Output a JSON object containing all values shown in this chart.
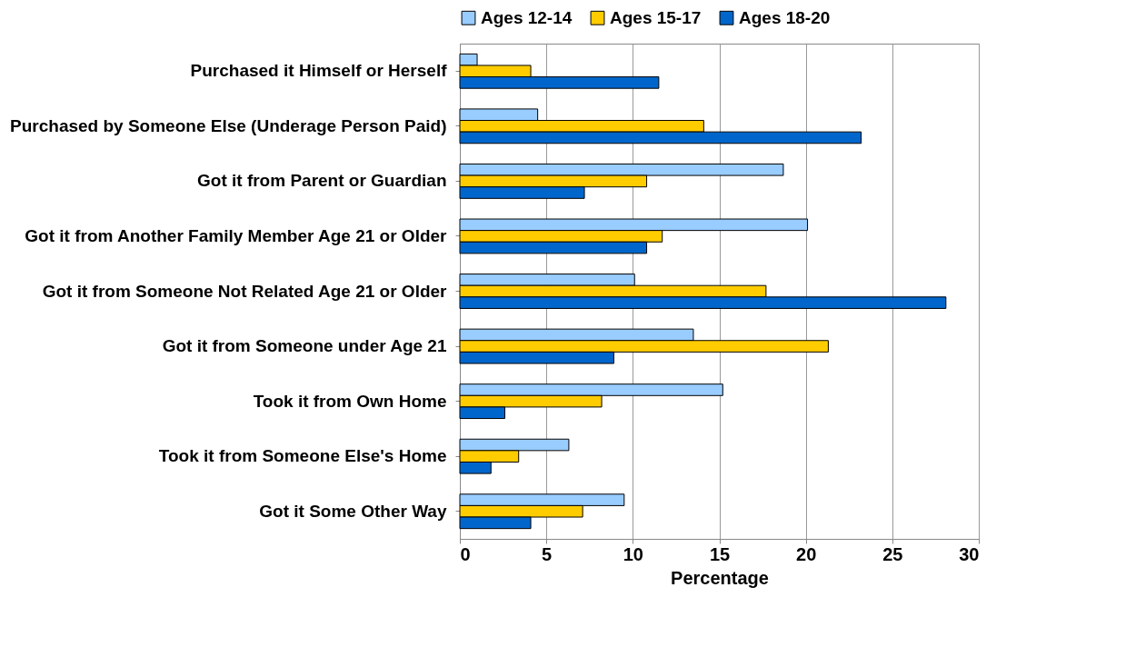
{
  "chart_data": {
    "type": "bar",
    "orientation": "horizontal",
    "xlabel": "Percentage",
    "categories": [
      "Purchased it Himself or Herself",
      "Purchased by Someone Else (Underage Person Paid)",
      "Got it from Parent or Guardian",
      "Got it from Another Family Member Age 21 or Older",
      "Got it from Someone Not Related Age 21 or Older",
      "Got it from Someone under Age 21",
      "Took it from Own Home",
      "Took it from Someone Else's Home",
      "Got it Some Other Way"
    ],
    "series": [
      {
        "name": "Ages 12-14",
        "color": "#99ccff",
        "values": [
          1.0,
          4.5,
          18.7,
          20.1,
          10.1,
          13.5,
          15.2,
          6.3,
          9.5
        ]
      },
      {
        "name": "Ages 15-17",
        "color": "#ffcc00",
        "values": [
          4.1,
          14.1,
          10.8,
          11.7,
          17.7,
          21.3,
          8.2,
          3.4,
          7.1
        ]
      },
      {
        "name": "Ages 18-20",
        "color": "#0066cc",
        "values": [
          11.5,
          23.2,
          7.2,
          10.8,
          28.1,
          8.9,
          2.6,
          1.8,
          4.1
        ]
      }
    ],
    "xlim": [
      0,
      30
    ],
    "xticks": [
      0,
      5,
      10,
      15,
      20,
      25,
      30
    ],
    "grid": "x",
    "legend": "top"
  }
}
